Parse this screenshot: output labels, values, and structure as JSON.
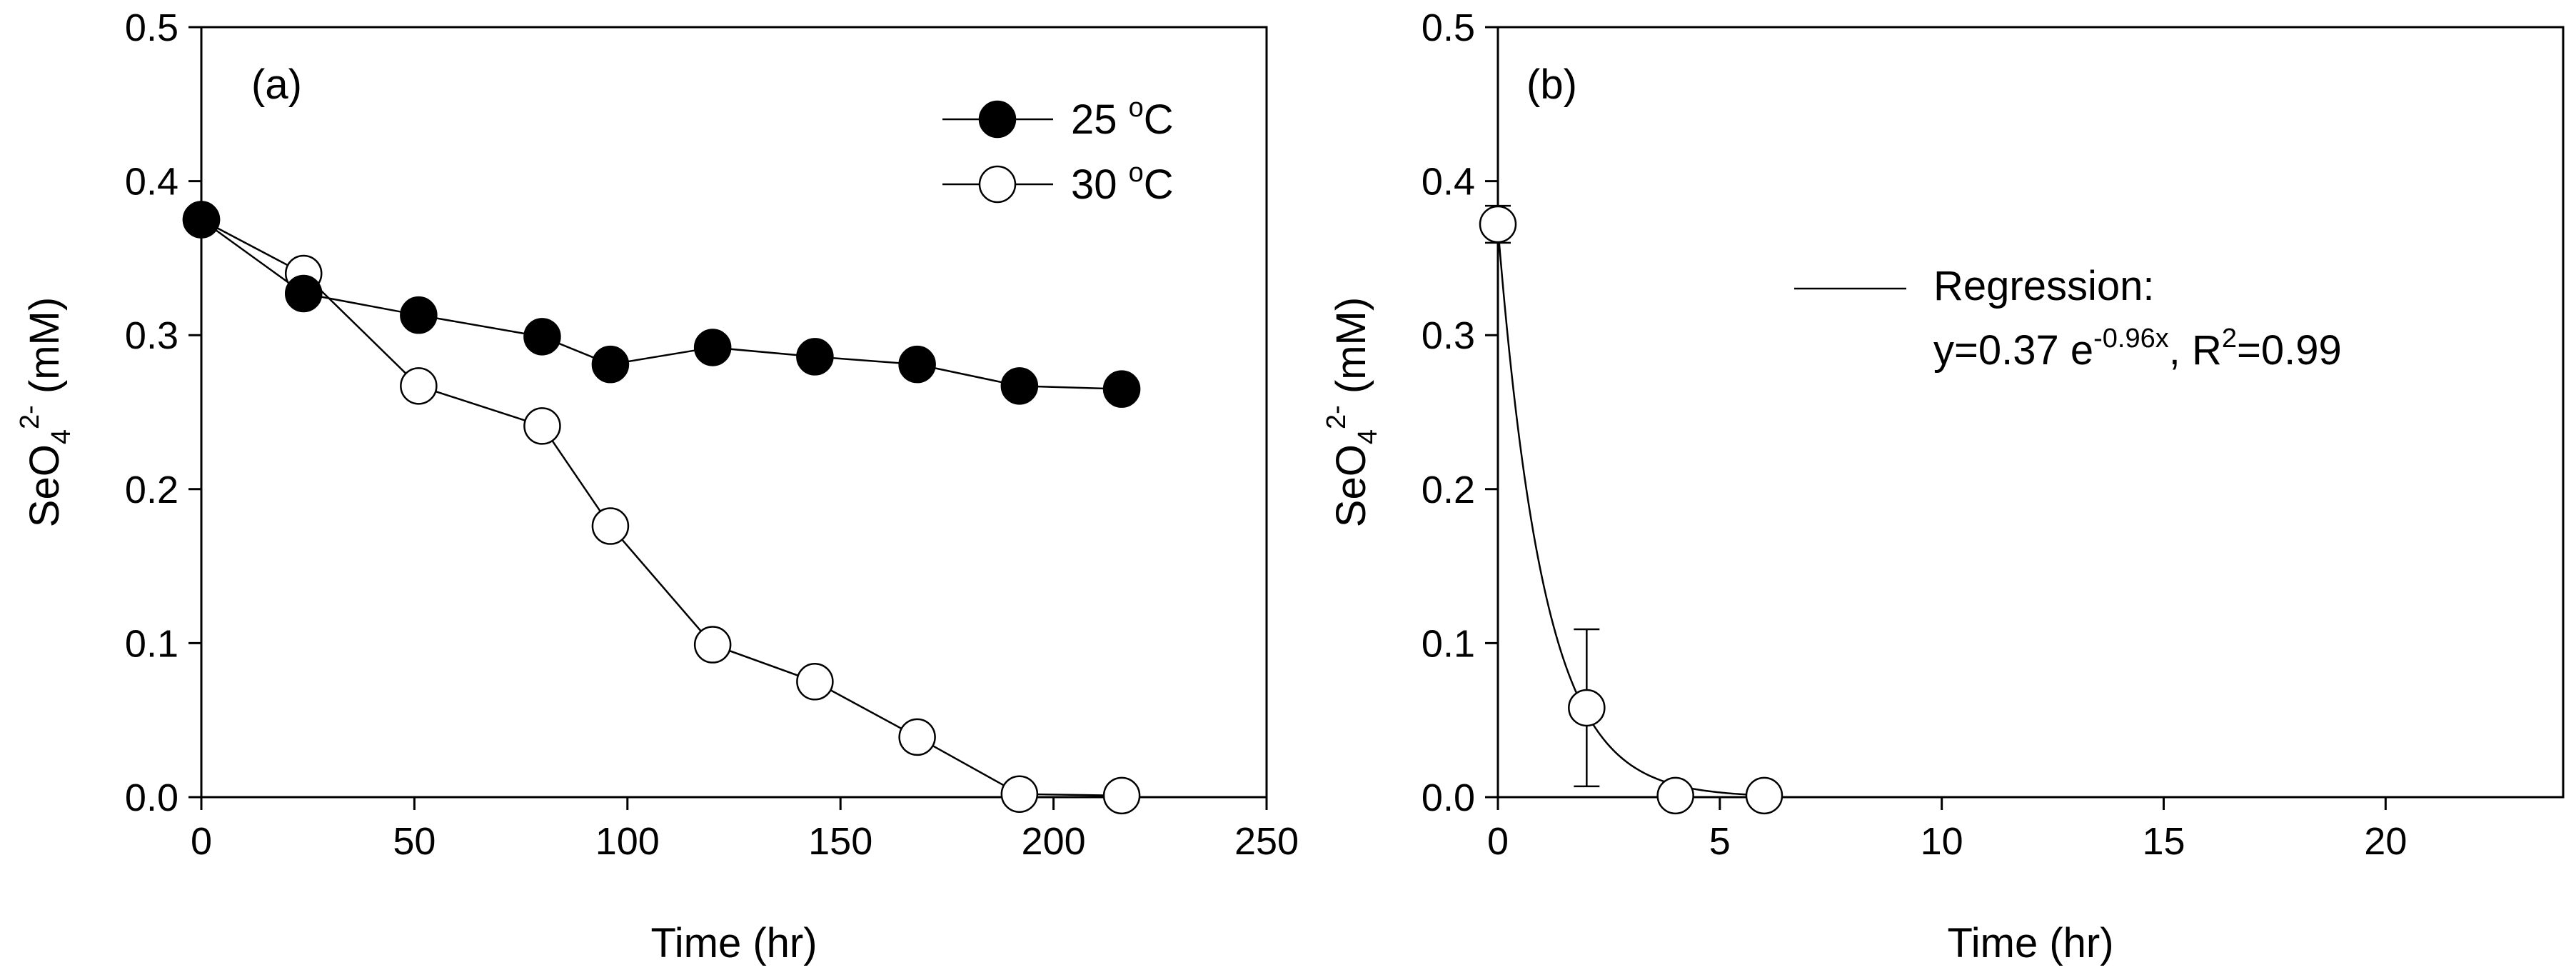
{
  "chart_data": [
    {
      "type": "line",
      "panel_label": "(a)",
      "xlabel": "Time (hr)",
      "ylabel": {
        "base": "SeO",
        "sub": "4",
        "sup": "2-",
        "rest": " (mM)"
      },
      "xlim": [
        0,
        250
      ],
      "ylim": [
        0,
        0.5
      ],
      "xticks": [
        "0",
        "50",
        "100",
        "150",
        "200",
        "250"
      ],
      "yticks": [
        "0.0",
        "0.1",
        "0.2",
        "0.3",
        "0.4",
        "0.5"
      ],
      "legend_position": "top-right",
      "series": [
        {
          "name": "25 °C",
          "label_main": "25 ",
          "label_sup": "o",
          "label_tail": "C",
          "marker": "filled-circle",
          "x": [
            0,
            24,
            51,
            80,
            96,
            120,
            144,
            168,
            192,
            216
          ],
          "y": [
            0.375,
            0.327,
            0.313,
            0.299,
            0.281,
            0.292,
            0.286,
            0.281,
            0.267,
            0.265
          ]
        },
        {
          "name": "30 °C",
          "label_main": "30 ",
          "label_sup": "o",
          "label_tail": "C",
          "marker": "open-circle",
          "x": [
            0,
            24,
            51,
            80,
            96,
            120,
            144,
            168,
            192,
            216
          ],
          "y": [
            0.375,
            0.34,
            0.267,
            0.241,
            0.176,
            0.099,
            0.075,
            0.039,
            0.002,
            0.001
          ]
        }
      ]
    },
    {
      "type": "scatter",
      "panel_label": "(b)",
      "xlabel": "Time (hr)",
      "ylabel": {
        "base": "SeO",
        "sub": "4",
        "sup": "2-",
        "rest": " (mM)"
      },
      "xlim": [
        0,
        24
      ],
      "ylim": [
        0,
        0.5
      ],
      "xticks": [
        "0",
        "5",
        "10",
        "15",
        "20"
      ],
      "yticks": [
        "0.0",
        "0.1",
        "0.2",
        "0.3",
        "0.4",
        "0.5"
      ],
      "legend_position": "top-center",
      "points": {
        "x": [
          0,
          2,
          4,
          6
        ],
        "y": [
          0.372,
          0.058,
          0.001,
          0.001
        ],
        "err": [
          0.012,
          0.051,
          0,
          0
        ]
      },
      "regression": {
        "legend_title": "Regression:",
        "eq_main": "y=0.37 e",
        "eq_exp": "-0.96x",
        "eq_r": ", R",
        "eq_r_sup": "2",
        "eq_tail": "=0.99",
        "a": 0.37,
        "b": -0.96,
        "x_range": [
          0,
          6
        ]
      }
    }
  ]
}
